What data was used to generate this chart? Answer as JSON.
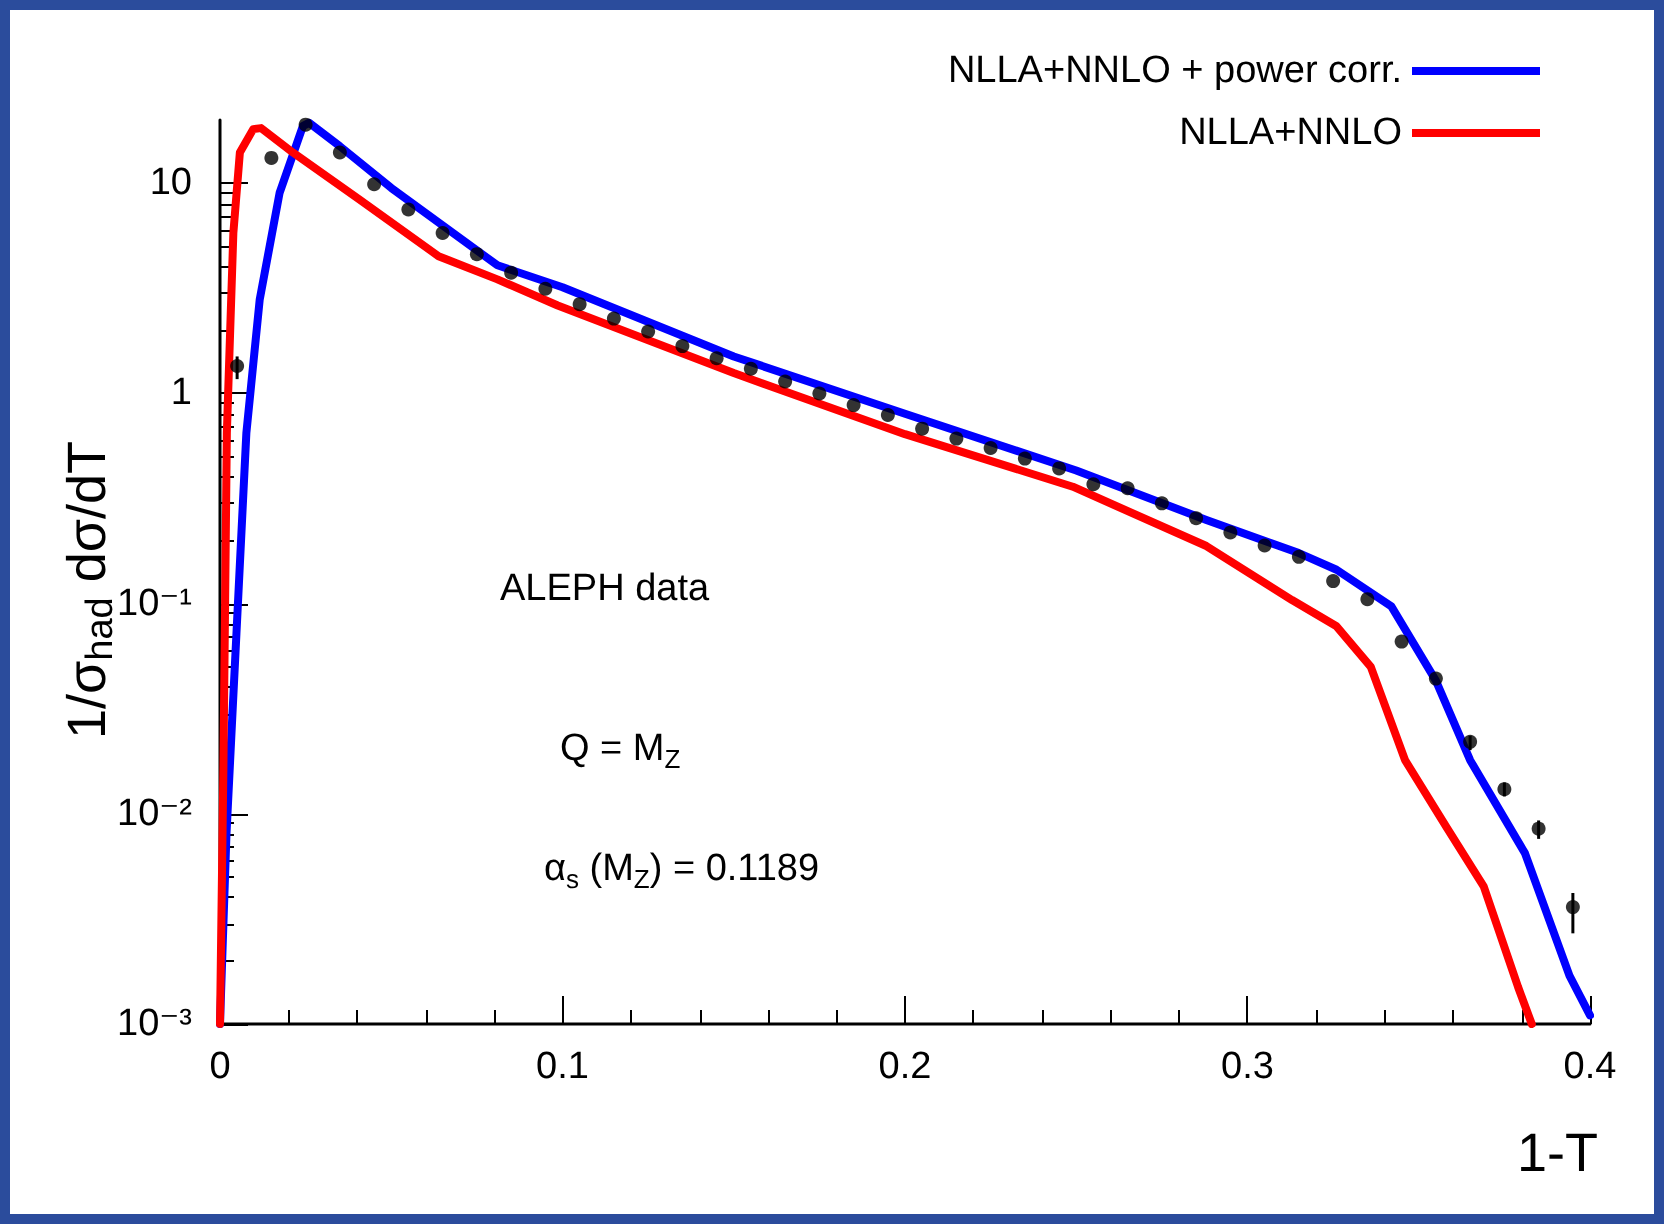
{
  "chart_data": {
    "type": "line",
    "xlabel": "1-T",
    "ylabel": "1/σ$_{had}$ dσ/dT",
    "annotations": [
      "ALEPH data",
      "Q = M$_{Z}$",
      "α$_{s}$ (M$_{Z}$) = 0.1189"
    ],
    "log": "y",
    "grid": false,
    "legend": "top right",
    "line_style": "solid",
    "marker": "none",
    "xlim": [
      0,
      0.4
    ],
    "xticks": [
      0,
      0.1,
      0.2,
      0.3,
      0.4
    ],
    "ylim": [
      0.001,
      20
    ],
    "yticks": [
      {
        "value": 0.001,
        "label": "10⁻³"
      },
      {
        "value": 0.01,
        "label": "10⁻²"
      },
      {
        "value": 0.1,
        "label": "10⁻¹"
      },
      {
        "value": 1,
        "label": "1"
      },
      {
        "value": 10,
        "label": "10"
      }
    ],
    "series": [
      {
        "name": "NLLA+NNLO + power corr.",
        "color": "#0000ff",
        "x": [
          0,
          0.0019,
          0.0048,
          0.0077,
          0.0116,
          0.0174,
          0.0242,
          0.026,
          0.035,
          0.05,
          0.081,
          0.1,
          0.15,
          0.2,
          0.25,
          0.288,
          0.315,
          0.326,
          0.342,
          0.355,
          0.365,
          0.381,
          0.394,
          0.4
        ],
        "values": [
          0.001,
          0.0081,
          0.072,
          0.65,
          2.8,
          9.0,
          18.7,
          19.4,
          15.0,
          9.5,
          4.07,
          3.2,
          1.5,
          0.8,
          0.43,
          0.25,
          0.174,
          0.145,
          0.097,
          0.043,
          0.018,
          0.0065,
          0.0017,
          0.0011
        ]
      },
      {
        "name": "NLLA+NNLO",
        "color": "#ff0000",
        "x": [
          0,
          0.001,
          0.002,
          0.0039,
          0.0058,
          0.0097,
          0.012,
          0.0213,
          0.0406,
          0.0638,
          0.081,
          0.0986,
          0.15,
          0.2,
          0.249,
          0.288,
          0.313,
          0.326,
          0.336,
          0.346,
          0.358,
          0.369,
          0.379,
          0.383
        ],
        "values": [
          0.001,
          0.017,
          0.65,
          5.8,
          14,
          18.1,
          18.3,
          14,
          8.4,
          4.5,
          3.49,
          2.62,
          1.25,
          0.64,
          0.36,
          0.188,
          0.104,
          0.078,
          0.05,
          0.018,
          0.0087,
          0.0045,
          0.0015,
          0.001
        ]
      },
      {
        "type": "scatter",
        "marker": "circle",
        "color": "#000000",
        "x": [
          0.005,
          0.015,
          0.025,
          0.035,
          0.045,
          0.055,
          0.065,
          0.075,
          0.085,
          0.095,
          0.105,
          0.115,
          0.125,
          0.135,
          0.145,
          0.155,
          0.165,
          0.175,
          0.185,
          0.195,
          0.205,
          0.215,
          0.225,
          0.235,
          0.245,
          0.255,
          0.265,
          0.275,
          0.285,
          0.295,
          0.305,
          0.315,
          0.325,
          0.335,
          0.345,
          0.355,
          0.365,
          0.375,
          0.385,
          0.395
        ],
        "values": [
          1.35,
          13.2,
          19.0,
          14.0,
          9.9,
          7.5,
          5.8,
          4.6,
          3.75,
          3.15,
          2.66,
          2.27,
          1.97,
          1.68,
          1.47,
          1.31,
          1.14,
          1.0,
          0.88,
          0.79,
          0.68,
          0.61,
          0.55,
          0.49,
          0.44,
          0.37,
          0.354,
          0.3,
          0.255,
          0.218,
          0.189,
          0.167,
          0.128,
          0.105,
          0.066,
          0.044,
          0.022,
          0.0131,
          0.0085,
          0.0036
        ],
        "errors": [
          [
            1.17,
            1.5
          ],
          null,
          null,
          null,
          null,
          null,
          null,
          null,
          null,
          null,
          null,
          null,
          null,
          null,
          null,
          null,
          null,
          null,
          null,
          null,
          null,
          null,
          null,
          null,
          null,
          null,
          null,
          null,
          null,
          null,
          null,
          null,
          null,
          null,
          null,
          null,
          [
            0.0201,
            0.0235
          ],
          [
            0.0121,
            0.0141
          ],
          [
            0.0076,
            0.0093
          ],
          [
            0.0027,
            0.0042
          ]
        ]
      }
    ]
  }
}
